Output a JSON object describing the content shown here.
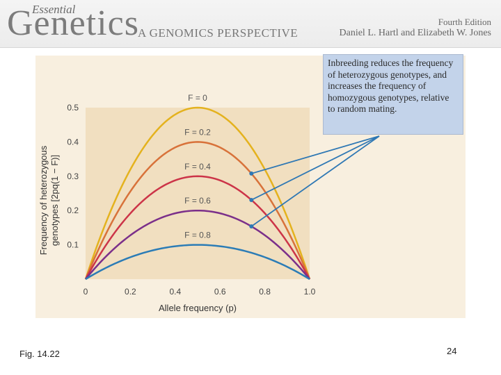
{
  "header": {
    "brand_small": "Essential",
    "brand_big": "Genetics",
    "brand_sub": "A GENOMICS PERSPECTIVE",
    "edition": "Fourth Edition",
    "authors": "Daniel L. Hartl and Elizabeth W. Jones"
  },
  "callout": "Inbreeding reduces the frequency of heterozygous genotypes, and increases the frequency of homozygous genotypes, relative to random mating.",
  "footer": {
    "figure_label": "Fig. 14.22",
    "page_number": "24"
  },
  "colors": {
    "plot_bg": "#f1dfc0",
    "callout_bg": "#c3d3ea",
    "pointer_line": "#2f78b4",
    "series": [
      "#e4b21e",
      "#d8723a",
      "#cc3448",
      "#7b2f8a",
      "#2b7cb6"
    ]
  },
  "chart_data": {
    "type": "line",
    "title": "",
    "xlabel": "Allele frequency (p)",
    "ylabel_line1": "Frequency of heterozygous",
    "ylabel_line2": "genotypes [2pq(1 − F)]",
    "xlim": [
      0,
      1
    ],
    "ylim": [
      0,
      0.5
    ],
    "x_ticks": [
      {
        "value": 0,
        "label": "0"
      },
      {
        "value": 0.2,
        "label": "0.2"
      },
      {
        "value": 0.4,
        "label": "0.4"
      },
      {
        "value": 0.6,
        "label": "0.6"
      },
      {
        "value": 0.8,
        "label": "0.8"
      },
      {
        "value": 1.0,
        "label": "1.0"
      }
    ],
    "y_ticks": [
      {
        "value": 0.1,
        "label": "0.1"
      },
      {
        "value": 0.2,
        "label": "0.2"
      },
      {
        "value": 0.3,
        "label": "0.3"
      },
      {
        "value": 0.4,
        "label": "0.4"
      },
      {
        "value": 0.5,
        "label": "0.5"
      }
    ],
    "grid": false,
    "series": [
      {
        "name": "F = 0",
        "F": 0.0,
        "color": "#e4b21e"
      },
      {
        "name": "F = 0.2",
        "F": 0.2,
        "color": "#d8723a"
      },
      {
        "name": "F = 0.4",
        "F": 0.4,
        "color": "#cc3448"
      },
      {
        "name": "F = 0.6",
        "F": 0.6,
        "color": "#7b2f8a"
      },
      {
        "name": "F = 0.8",
        "F": 0.8,
        "color": "#2b7cb6"
      }
    ],
    "pointer_series": [
      "F = 0.2",
      "F = 0.4",
      "F = 0.6"
    ]
  }
}
